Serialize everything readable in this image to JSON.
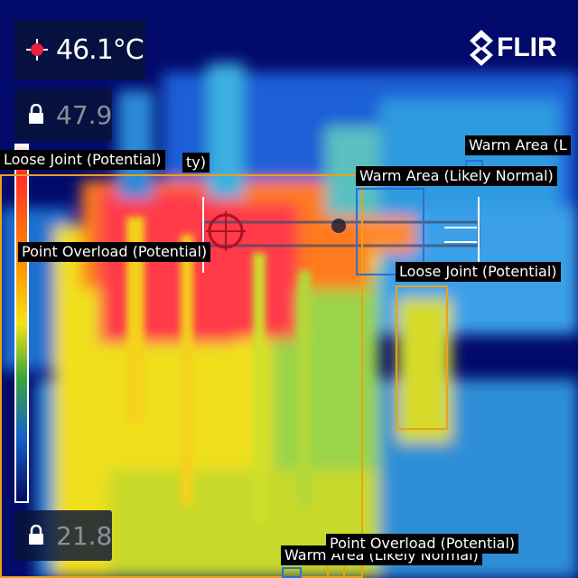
{
  "camera": {
    "brand": "FLIR",
    "spot_temperature": "46.1°C",
    "scale_max": "47.9",
    "scale_min": "21.8",
    "spot_icon": "crosshair-spot-icon",
    "lock_icon": "lock-icon"
  },
  "annotations": [
    {
      "label": "Loose Joint (Potential)",
      "color": "#e8a317"
    },
    {
      "label": "ty)",
      "color": "#e8a317"
    },
    {
      "label": "Point Overload (Potential)",
      "color": "#e8a317"
    },
    {
      "label": "Warm Area (Likely Normal)",
      "color": "#2a6fd6"
    },
    {
      "label": "Warm Area (L",
      "color": "#2a6fd6"
    },
    {
      "label": "Loose Joint (Potential)",
      "color": "#e8a317"
    },
    {
      "label": "Warm Area (Likely Normal)",
      "color": "#2a6fd6"
    },
    {
      "label": "Point Overload (Potential)",
      "color": "#e8a317"
    }
  ],
  "colors": {
    "overload": "#e8a317",
    "warm": "#2a6fd6",
    "hot": "#e8213f",
    "cold": "#020a6b"
  }
}
